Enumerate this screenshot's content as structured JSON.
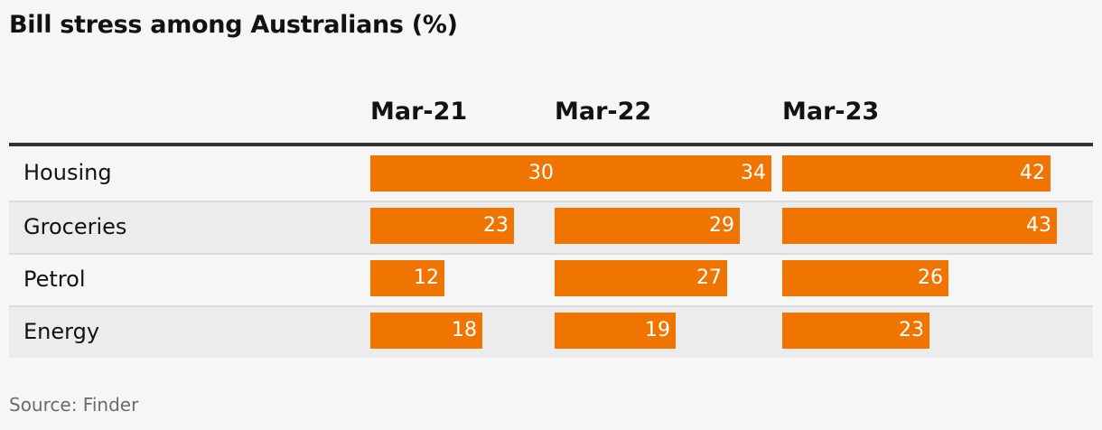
{
  "chart_data": {
    "type": "table",
    "title": "Bill stress among Australians (%)",
    "columns": [
      "Mar-21",
      "Mar-22",
      "Mar-23"
    ],
    "rows": [
      {
        "label": "Housing",
        "values": [
          30,
          34,
          42
        ]
      },
      {
        "label": "Groceries",
        "values": [
          23,
          29,
          43
        ]
      },
      {
        "label": "Petrol",
        "values": [
          12,
          27,
          26
        ]
      },
      {
        "label": "Energy",
        "values": [
          18,
          19,
          23
        ]
      }
    ],
    "source": "Source: Finder",
    "bar_color": "#f07400"
  }
}
